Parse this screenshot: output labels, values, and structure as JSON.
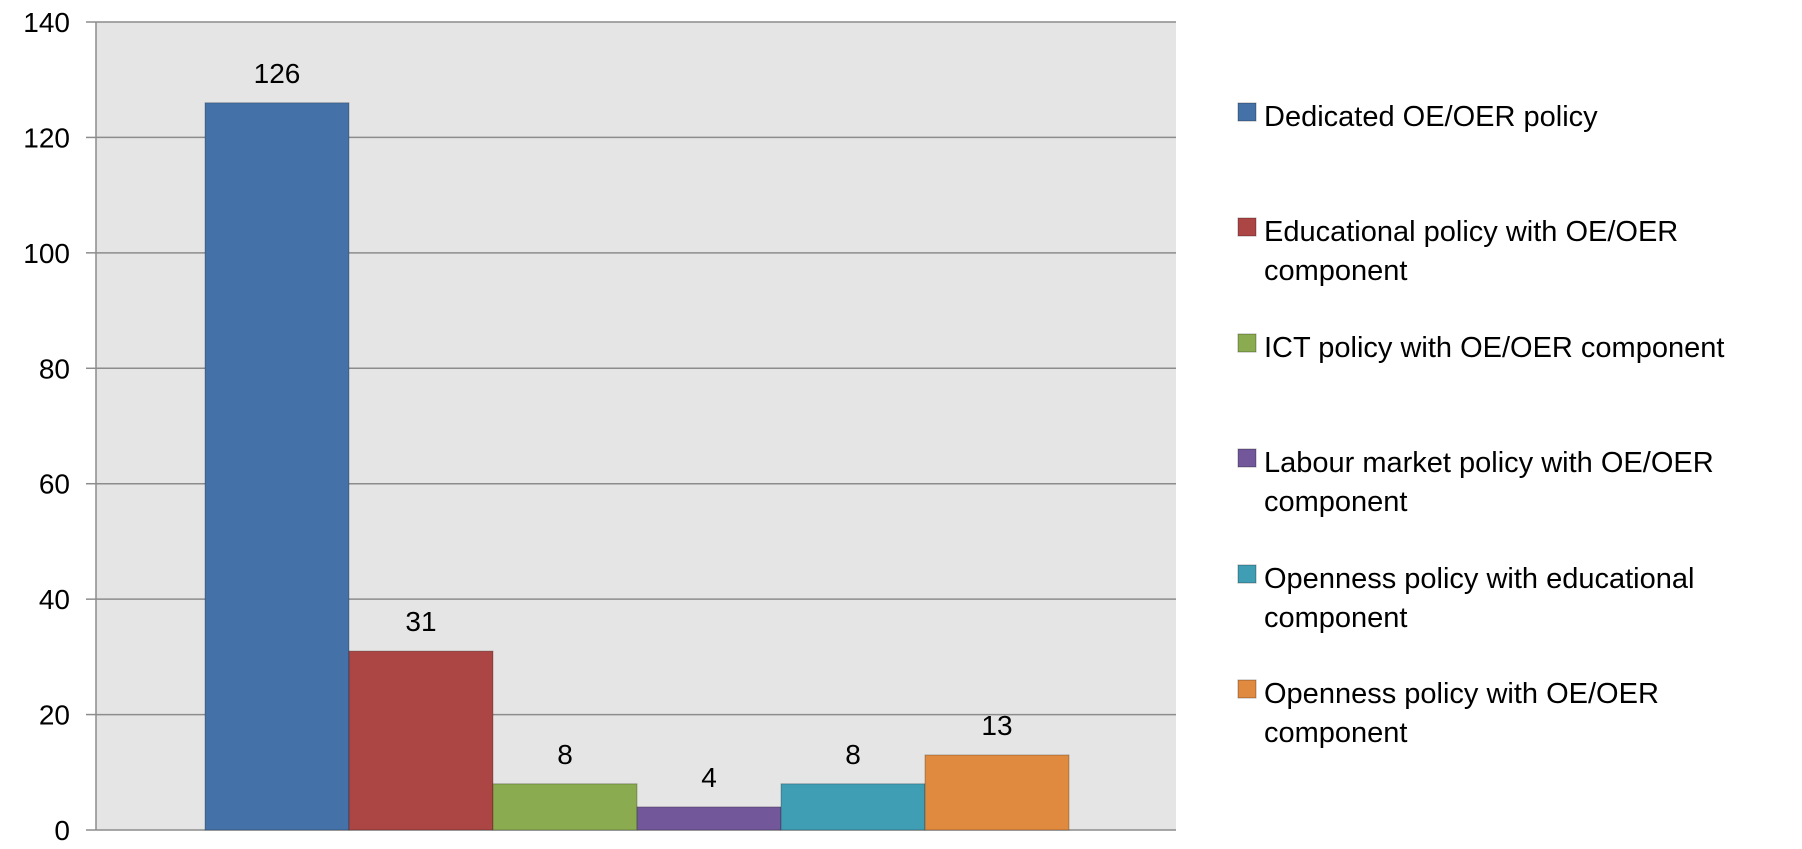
{
  "chart_data": {
    "type": "bar",
    "title": "",
    "xlabel": "",
    "ylabel": "",
    "ylim": [
      0,
      140
    ],
    "yticks": [
      0,
      20,
      40,
      60,
      80,
      100,
      120,
      140
    ],
    "grid": true,
    "legend_position": "right",
    "plot_background": "#e5e5e5",
    "series": [
      {
        "name": "Dedicated OE/OER policy",
        "value": 126,
        "color": "#4472a8",
        "legend_lines": [
          "Dedicated OE/OER policy"
        ]
      },
      {
        "name": "Educational policy with OE/OER component",
        "value": 31,
        "color": "#ac4645",
        "legend_lines": [
          "Educational policy with OE/OER",
          "component"
        ]
      },
      {
        "name": "ICT policy with OE/OER component",
        "value": 8,
        "color": "#8aab4f",
        "legend_lines": [
          "ICT policy with OE/OER component"
        ]
      },
      {
        "name": "Labour market policy with OE/OER component",
        "value": 4,
        "color": "#72589a",
        "legend_lines": [
          "Labour market policy with OE/OER",
          "component"
        ]
      },
      {
        "name": "Openness policy with educational component",
        "value": 8,
        "color": "#3f9db4",
        "legend_lines": [
          "Openness policy with educational",
          "component"
        ]
      },
      {
        "name": "Openness policy with OE/OER component",
        "value": 13,
        "color": "#e08a3f",
        "legend_lines": [
          "Openness policy with OE/OER",
          "component"
        ]
      }
    ]
  }
}
